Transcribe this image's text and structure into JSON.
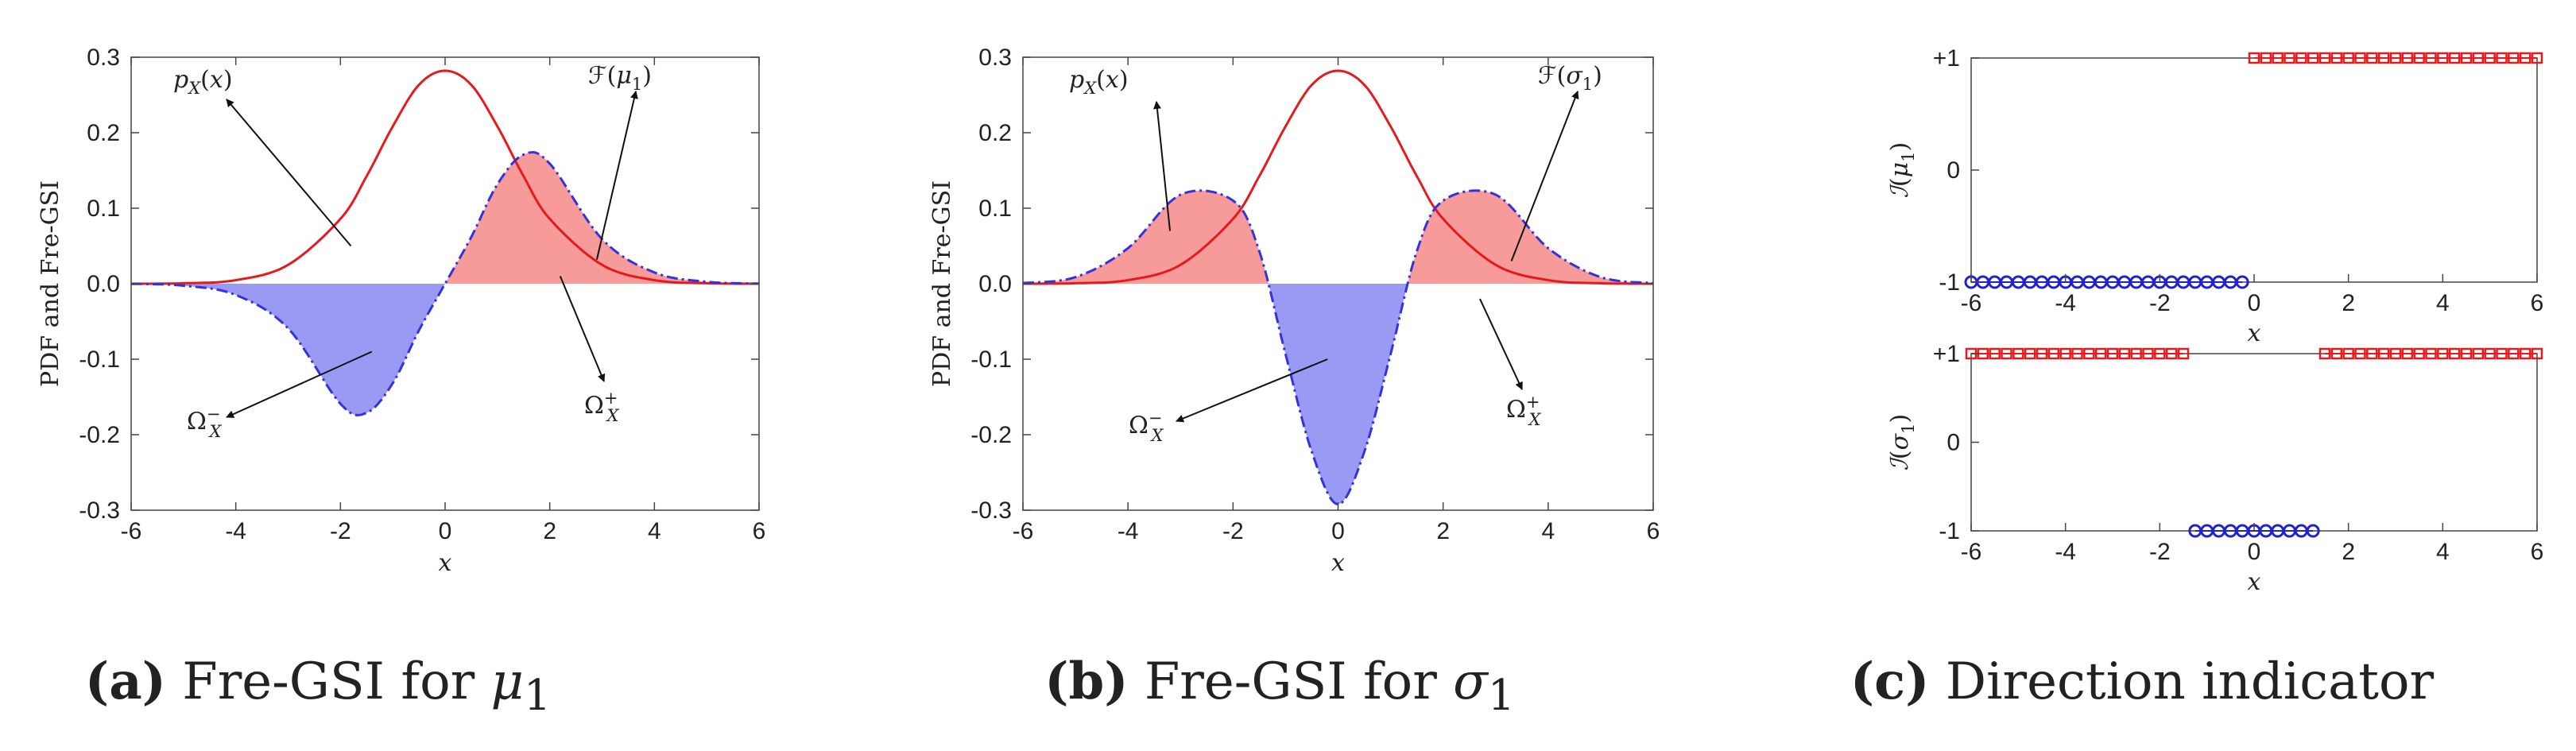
{
  "colors": {
    "pdf_line": "#e41a1c",
    "gsi_line": "#3333dd",
    "positive_fill": "#f79a9a",
    "negative_fill": "#9a9af5",
    "plus_marker": "#e41a1c",
    "minus_marker": "#2222cc",
    "axis": "#444444"
  },
  "chart_data": [
    {
      "id": "a",
      "type": "area",
      "title": "Fre-GSI for μ1",
      "xlabel": "x",
      "ylabel": "PDF and Fre-GSI",
      "xlim": [
        -6,
        6
      ],
      "ylim": [
        -0.3,
        0.3
      ],
      "xticks": [
        "-6",
        "-4",
        "-2",
        "0",
        "2",
        "4",
        "6"
      ],
      "yticks": [
        "0.3",
        "0.2",
        "0.1",
        "0.0",
        "-0.1",
        "-0.2",
        "-0.3"
      ],
      "series": [
        {
          "name": "p_X(x)",
          "style": "solid red line",
          "x": [
            -6,
            -5,
            -4,
            -3,
            -2,
            -1.5,
            -1,
            -0.5,
            0,
            0.5,
            1,
            1.5,
            2,
            3,
            4,
            5,
            6
          ],
          "y": [
            0.0,
            0.0006,
            0.0047,
            0.025,
            0.0859,
            0.1424,
            0.2084,
            0.2634,
            0.2821,
            0.2634,
            0.2084,
            0.1424,
            0.0859,
            0.025,
            0.0047,
            0.0006,
            0.0
          ]
        },
        {
          "name": "F(μ1)",
          "style": "dash-dot blue line, filled",
          "x": [
            -6,
            -5,
            -4,
            -3,
            -2,
            -1.5,
            -1,
            -0.5,
            0,
            0.5,
            1,
            1.5,
            2,
            3,
            4,
            5,
            6
          ],
          "y": [
            -0.0001,
            -0.0026,
            -0.0149,
            -0.0591,
            -0.1591,
            -0.171,
            -0.1317,
            -0.0618,
            0.0,
            0.0618,
            0.1317,
            0.171,
            0.1591,
            0.0591,
            0.0149,
            0.0026,
            0.0001
          ]
        }
      ],
      "annotations": [
        {
          "text": "p_X(x)",
          "points_to": [
            -1.8,
            0.05
          ]
        },
        {
          "text": "F(μ1)",
          "points_to": [
            2.9,
            0.032
          ]
        },
        {
          "text": "Ω_X^-",
          "points_to": [
            -1.4,
            -0.09
          ]
        },
        {
          "text": "Ω_X^+",
          "points_to": [
            2.2,
            0.01
          ]
        }
      ]
    },
    {
      "id": "b",
      "type": "area",
      "title": "Fre-GSI for σ1",
      "xlabel": "x",
      "ylabel": "PDF and Fre-GSI",
      "xlim": [
        -6,
        6
      ],
      "ylim": [
        -0.3,
        0.3
      ],
      "xticks": [
        "-6",
        "-4",
        "-2",
        "0",
        "2",
        "4",
        "6"
      ],
      "yticks": [
        "0.3",
        "0.2",
        "0.1",
        "0.0",
        "-0.1",
        "-0.2",
        "-0.3"
      ],
      "series": [
        {
          "name": "p_X(x)",
          "style": "solid red line",
          "x": [
            -6,
            -5,
            -4,
            -3,
            -2,
            -1.5,
            -1,
            -0.5,
            0,
            0.5,
            1,
            1.5,
            2,
            3,
            4,
            5,
            6
          ],
          "y": [
            0.0,
            0.0006,
            0.0047,
            0.025,
            0.0859,
            0.1424,
            0.2084,
            0.2634,
            0.2821,
            0.2634,
            0.2084,
            0.1424,
            0.0859,
            0.025,
            0.0047,
            0.0006,
            0.0
          ]
        },
        {
          "name": "F(σ1)",
          "style": "dash-dot blue line, filled",
          "x": [
            -6,
            -5,
            -4,
            -3,
            -2,
            -1.5,
            -1,
            -0.5,
            0,
            0.5,
            1,
            1.5,
            2,
            3,
            4,
            5,
            6
          ],
          "y": [
            0.0008,
            0.0087,
            0.0471,
            0.1179,
            0.1101,
            0.0432,
            -0.0933,
            -0.2226,
            -0.2921,
            -0.2226,
            -0.0933,
            0.0432,
            0.1101,
            0.1179,
            0.0471,
            0.0087,
            0.0008
          ]
        }
      ],
      "annotations": [
        {
          "text": "p_X(x)",
          "points_to": [
            -3.2,
            0.07
          ]
        },
        {
          "text": "F(σ1)",
          "points_to": [
            3.3,
            0.03
          ]
        },
        {
          "text": "Ω_X^-",
          "points_to": [
            -0.2,
            -0.1
          ]
        },
        {
          "text": "Ω_X^+",
          "points_to": [
            2.7,
            -0.02
          ]
        }
      ]
    },
    {
      "id": "c",
      "type": "scatter",
      "title": "Direction indicator",
      "subplots": [
        {
          "ylabel": "I(μ1)",
          "xlabel": "x",
          "xlim": [
            -6,
            6
          ],
          "ylim": [
            -1,
            1
          ],
          "xticks": [
            "-6",
            "-4",
            "-2",
            "0",
            "2",
            "4",
            "6"
          ],
          "yticks": [
            "+1",
            "0",
            "-1"
          ],
          "series": [
            {
              "name": "+1",
              "marker": "square",
              "range": [
                0,
                6
              ],
              "y": 1
            },
            {
              "name": "-1",
              "marker": "circle",
              "range": [
                -6,
                -0.25
              ],
              "y": -1
            }
          ]
        },
        {
          "ylabel": "I(σ1)",
          "xlabel": "x",
          "xlim": [
            -6,
            6
          ],
          "ylim": [
            -1,
            1
          ],
          "xticks": [
            "-6",
            "-4",
            "-2",
            "0",
            "2",
            "4",
            "6"
          ],
          "yticks": [
            "+1",
            "0",
            "-1"
          ],
          "series": [
            {
              "name": "+1 (left)",
              "marker": "square",
              "range": [
                -6,
                -1.5
              ],
              "y": 1
            },
            {
              "name": "+1 (right)",
              "marker": "square",
              "range": [
                1.5,
                6
              ],
              "y": 1
            },
            {
              "name": "-1",
              "marker": "circle",
              "range": [
                -1.25,
                1.25
              ],
              "y": -1
            }
          ]
        }
      ]
    }
  ],
  "captions": {
    "a": {
      "label": "(a)",
      "text": " Fre-GSI for ",
      "sym": "μ",
      "sub": "1"
    },
    "b": {
      "label": "(b)",
      "text": " Fre-GSI for ",
      "sym": "σ",
      "sub": "1"
    },
    "c": {
      "label": "(c)",
      "text": " Direction indicator"
    }
  }
}
